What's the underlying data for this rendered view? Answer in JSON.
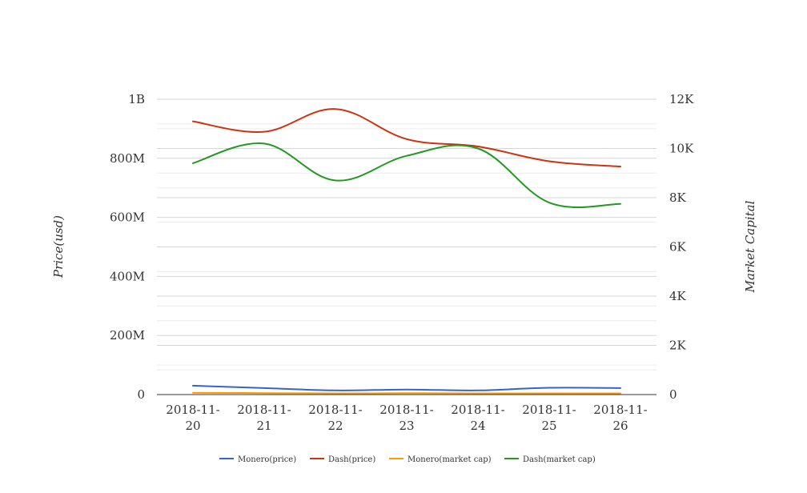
{
  "chart_data": {
    "type": "line",
    "categories": [
      [
        "2018-11-",
        "20"
      ],
      [
        "2018-11-",
        "21"
      ],
      [
        "2018-11-",
        "22"
      ],
      [
        "2018-11-",
        "23"
      ],
      [
        "2018-11-",
        "24"
      ],
      [
        "2018-11-",
        "25"
      ],
      [
        "2018-11-",
        "26"
      ]
    ],
    "y_left": {
      "label": "Price(usd)",
      "range": [
        0,
        1000000000
      ],
      "ticks": [
        {
          "value": 0,
          "label": "0"
        },
        {
          "value": 200000000,
          "label": "200M"
        },
        {
          "value": 400000000,
          "label": "400M"
        },
        {
          "value": 600000000,
          "label": "600M"
        },
        {
          "value": 800000000,
          "label": "800M"
        },
        {
          "value": 1000000000,
          "label": "1B"
        }
      ]
    },
    "y_right": {
      "label": "Market Capital",
      "range": [
        0,
        12000
      ],
      "ticks": [
        {
          "value": 0,
          "label": "0"
        },
        {
          "value": 2000,
          "label": "2K"
        },
        {
          "value": 4000,
          "label": "4K"
        },
        {
          "value": 6000,
          "label": "6K"
        },
        {
          "value": 8000,
          "label": "8K"
        },
        {
          "value": 10000,
          "label": "10K"
        },
        {
          "value": 12000,
          "label": "12K"
        }
      ]
    },
    "series": [
      {
        "name": "Monero(price)",
        "axis": "left",
        "color": "#3366cc",
        "values": [
          30000000,
          22000000,
          14000000,
          17000000,
          14000000,
          23000000,
          22000000
        ]
      },
      {
        "name": "Dash(price)",
        "axis": "left",
        "color": "#cc3311",
        "values": [
          925000000,
          890000000,
          967000000,
          865000000,
          840000000,
          790000000,
          772000000
        ]
      },
      {
        "name": "Monero(market cap)",
        "axis": "left",
        "color": "#ff9900",
        "values": [
          6000000,
          5000000,
          4000000,
          4500000,
          4000000,
          4000000,
          4000000
        ]
      },
      {
        "name": "Dash(market cap)",
        "axis": "right",
        "color": "#229922",
        "values": [
          9400,
          10200,
          8700,
          9700,
          10000,
          7800,
          7750
        ]
      }
    ],
    "legend_position": "bottom",
    "grid": true
  }
}
